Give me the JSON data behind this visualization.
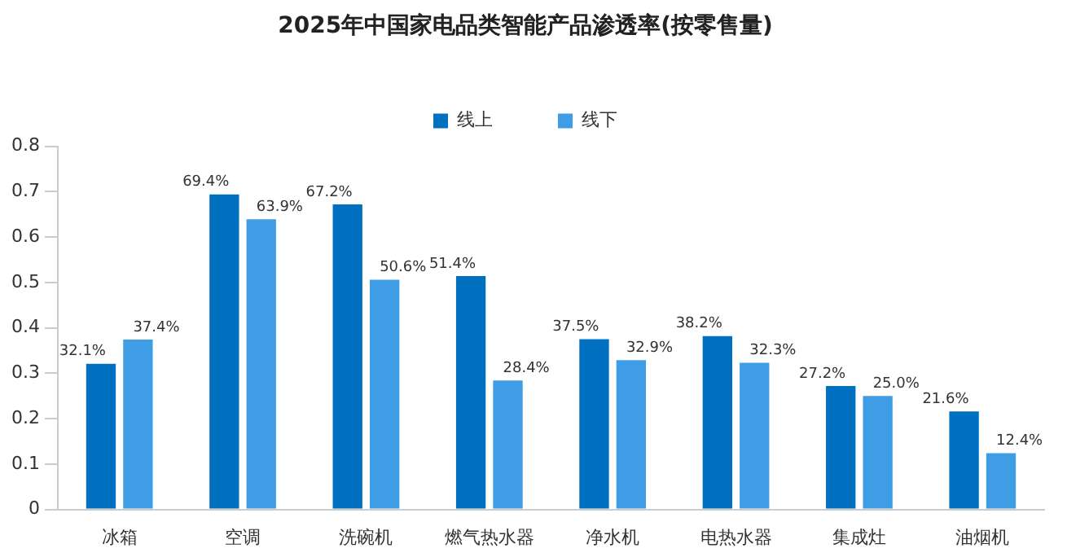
{
  "chart_data": {
    "type": "bar",
    "title": "2025年中国家电品类智能产品渗透率(按零售量)",
    "categories": [
      "冰箱",
      "空调",
      "洗碗机",
      "燃气热水器",
      "净水机",
      "电热水器",
      "集成灶",
      "油烟机"
    ],
    "series": [
      {
        "name": "线上",
        "color": "#0070c0",
        "values": [
          0.321,
          0.694,
          0.672,
          0.514,
          0.375,
          0.382,
          0.272,
          0.216
        ],
        "value_labels": [
          "32.1%",
          "69.4%",
          "67.2%",
          "51.4%",
          "37.5%",
          "38.2%",
          "27.2%",
          "21.6%"
        ]
      },
      {
        "name": "线下",
        "color": "#3f9de6",
        "values": [
          0.374,
          0.639,
          0.506,
          0.284,
          0.329,
          0.323,
          0.25,
          0.124
        ],
        "value_labels": [
          "37.4%",
          "63.9%",
          "50.6%",
          "28.4%",
          "32.9%",
          "32.3%",
          "25.0%",
          "12.4%"
        ]
      }
    ],
    "ylim": [
      0,
      0.8
    ],
    "yticks": [
      0,
      0.1,
      0.2,
      0.3,
      0.4,
      0.5,
      0.6,
      0.7,
      0.8
    ],
    "grid": false,
    "legend": "top"
  }
}
